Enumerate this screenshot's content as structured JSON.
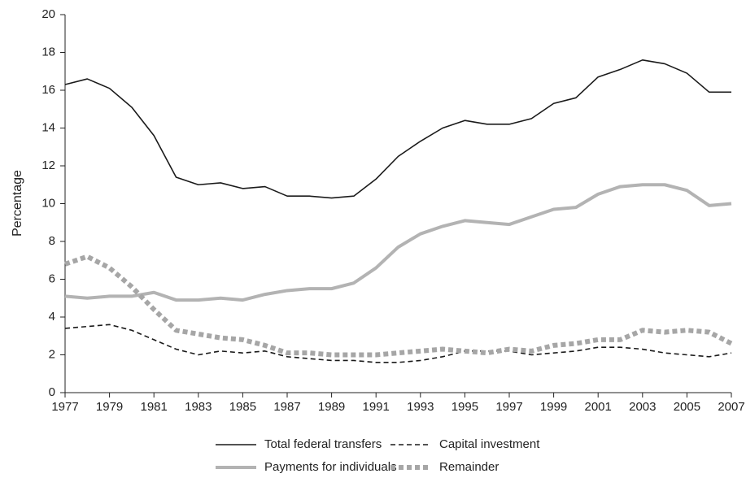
{
  "chart_data": {
    "type": "line",
    "ylabel": "Percentage",
    "x": [
      1977,
      1978,
      1979,
      1980,
      1981,
      1982,
      1983,
      1984,
      1985,
      1986,
      1987,
      1988,
      1989,
      1990,
      1991,
      1992,
      1993,
      1994,
      1995,
      1996,
      1997,
      1998,
      1999,
      2000,
      2001,
      2002,
      2003,
      2004,
      2005,
      2006,
      2007
    ],
    "xlim": [
      1977,
      2007
    ],
    "xticks": [
      1977,
      1979,
      1981,
      1983,
      1985,
      1987,
      1989,
      1991,
      1993,
      1995,
      1997,
      1999,
      2001,
      2003,
      2005,
      2007
    ],
    "ylim": [
      0,
      20
    ],
    "yticks": [
      0,
      2,
      4,
      6,
      8,
      10,
      12,
      14,
      16,
      18,
      20
    ],
    "grid": false,
    "legend": "bottom",
    "series": [
      {
        "name": "Total federal transfers",
        "color": "#1a1a1a",
        "linestyle": "solid",
        "linewidth": 1.6,
        "values": [
          16.3,
          16.6,
          16.1,
          15.1,
          13.6,
          11.4,
          11.0,
          11.1,
          10.8,
          10.9,
          10.4,
          10.4,
          10.3,
          10.4,
          11.3,
          12.5,
          13.3,
          14.0,
          14.4,
          14.2,
          14.2,
          14.5,
          15.3,
          15.6,
          16.7,
          17.1,
          17.6,
          17.4,
          16.9,
          15.9,
          15.9
        ]
      },
      {
        "name": "Payments for individuals",
        "color": "#b3b3b3",
        "linestyle": "solid",
        "linewidth": 4,
        "values": [
          5.1,
          5.0,
          5.1,
          5.1,
          5.3,
          4.9,
          4.9,
          5.0,
          4.9,
          5.2,
          5.4,
          5.5,
          5.5,
          5.8,
          6.6,
          7.7,
          8.4,
          8.8,
          9.1,
          9.0,
          8.9,
          9.3,
          9.7,
          9.8,
          10.5,
          10.9,
          11.0,
          11.0,
          10.7,
          9.9,
          10.0
        ]
      },
      {
        "name": "Capital investment",
        "color": "#1a1a1a",
        "linestyle": "dashed",
        "linewidth": 1.6,
        "values": [
          3.4,
          3.5,
          3.6,
          3.3,
          2.8,
          2.3,
          2.0,
          2.2,
          2.1,
          2.2,
          1.9,
          1.8,
          1.7,
          1.7,
          1.6,
          1.6,
          1.7,
          1.9,
          2.2,
          2.2,
          2.2,
          2.0,
          2.1,
          2.2,
          2.4,
          2.4,
          2.3,
          2.1,
          2.0,
          1.9,
          2.1
        ]
      },
      {
        "name": "Remainder",
        "color": "#a6a6a6",
        "linestyle": "dotted",
        "linewidth": 6,
        "values": [
          6.8,
          7.2,
          6.6,
          5.6,
          4.4,
          3.3,
          3.1,
          2.9,
          2.8,
          2.5,
          2.1,
          2.1,
          2.0,
          2.0,
          2.0,
          2.1,
          2.2,
          2.3,
          2.2,
          2.1,
          2.3,
          2.2,
          2.5,
          2.6,
          2.8,
          2.8,
          3.3,
          3.2,
          3.3,
          3.2,
          2.6
        ]
      }
    ]
  }
}
